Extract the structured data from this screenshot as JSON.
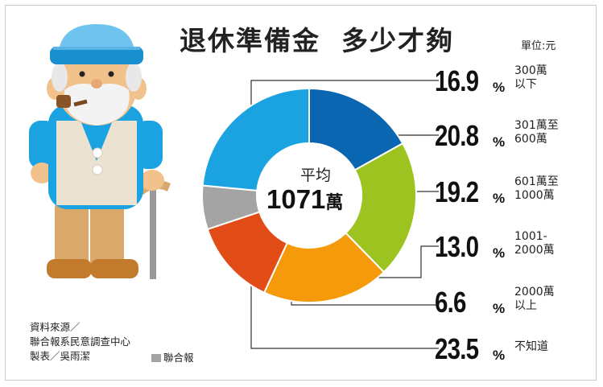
{
  "title_part1": "退休準備金",
  "title_part2": "多少才夠",
  "unit": "單位:元",
  "center": {
    "label": "平均",
    "value": "1071",
    "unit": "萬"
  },
  "source": {
    "line1": "資料來源／",
    "line2": "聯合報系民意調查中心",
    "line3": "製表／吳雨潔",
    "brand": "聯合報"
  },
  "chart_data": {
    "type": "pie",
    "donut": true,
    "unit": "%",
    "slices": [
      {
        "label": "300萬以下",
        "value": 16.9,
        "color": "#0b66b2"
      },
      {
        "label": "301萬至600萬",
        "value": 20.8,
        "color": "#9cc320"
      },
      {
        "label": "601萬至1000萬",
        "value": 19.2,
        "color": "#f59a0a"
      },
      {
        "label": "1001-2000萬",
        "value": 13.0,
        "color": "#e24c17"
      },
      {
        "label": "2000萬以上",
        "value": 6.6,
        "color": "#a4a4a4"
      },
      {
        "label": "不知道",
        "value": 23.5,
        "color": "#1aa3e0"
      }
    ],
    "rows": [
      {
        "value": "16.9",
        "sign": "%",
        "line1": "300萬",
        "line2": "以下"
      },
      {
        "value": "20.8",
        "sign": "%",
        "line1": "301萬至",
        "line2": "600萬"
      },
      {
        "value": "19.2",
        "sign": "%",
        "line1": "601萬至",
        "line2": "1000萬"
      },
      {
        "value": "13.0",
        "sign": "%",
        "line1": "1001-",
        "line2": "2000萬"
      },
      {
        "value": "6.6",
        "sign": "%",
        "line1": "2000萬",
        "line2": "以上"
      },
      {
        "value": "23.5",
        "sign": "%",
        "line1": "不知道",
        "line2": ""
      }
    ]
  }
}
